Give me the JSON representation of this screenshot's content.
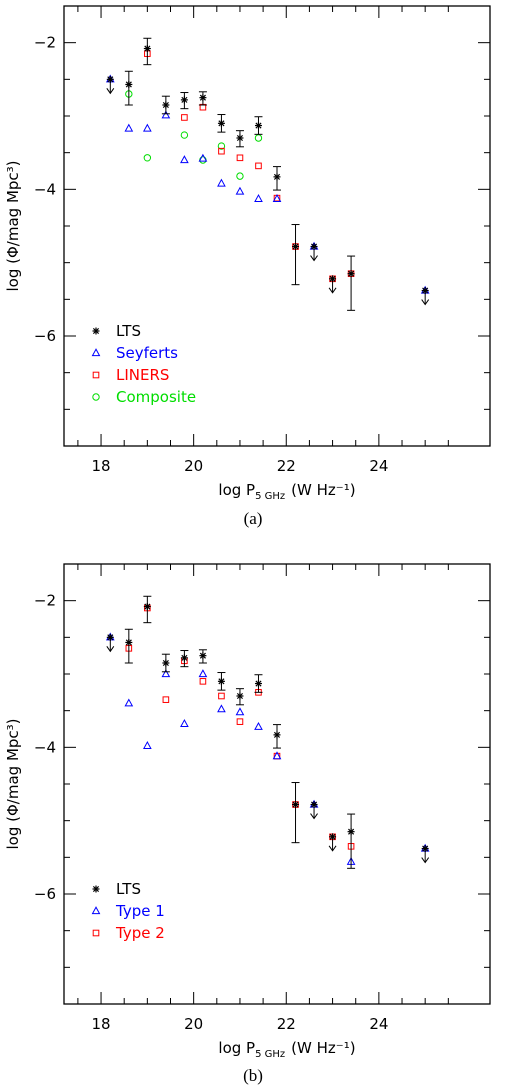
{
  "chart_data": [
    {
      "type": "scatter",
      "panel_label": "(a)",
      "xlabel": "log P5GHz (W Hz⁻¹)",
      "xlabel_parts": {
        "pre": "log P",
        "sub": "5 GHz",
        "post": "(W Hz⁻¹)"
      },
      "ylabel": "log (Φ/mag Mpc³)",
      "xlim": [
        17.2,
        26.4
      ],
      "ylim": [
        -7.5,
        -1.5
      ],
      "xticks": [
        18,
        20,
        22,
        24
      ],
      "yticks": [
        -2,
        -4,
        -6
      ],
      "grid": false,
      "legend_position": "bottom-left",
      "series": [
        {
          "name": "LTS",
          "marker": "asterisk",
          "color": "#000000",
          "x": [
            18.2,
            18.6,
            19.0,
            19.4,
            19.8,
            20.2,
            20.6,
            21.0,
            21.4,
            21.8,
            22.2,
            22.6,
            23.0,
            23.4,
            25.0
          ],
          "y": [
            -2.5,
            -2.57,
            -2.08,
            -2.85,
            -2.78,
            -2.75,
            -3.1,
            -3.3,
            -3.13,
            -3.83,
            -4.78,
            -4.78,
            -5.22,
            -5.15,
            -5.38
          ],
          "err_lo": [
            null,
            0.28,
            0.22,
            0.12,
            0.12,
            0.1,
            0.12,
            0.12,
            0.12,
            0.18,
            0.52,
            null,
            null,
            0.5,
            null
          ],
          "err_hi": [
            null,
            0.18,
            0.14,
            0.12,
            0.1,
            0.08,
            0.12,
            0.1,
            0.12,
            0.14,
            0.3,
            null,
            null,
            0.24,
            null
          ],
          "upper_limit": [
            true,
            false,
            false,
            false,
            false,
            false,
            false,
            false,
            false,
            false,
            false,
            true,
            true,
            false,
            true
          ]
        },
        {
          "name": "Seyferts",
          "marker": "triangle",
          "color": "#0000ff",
          "x": [
            18.2,
            18.6,
            19.0,
            19.4,
            19.8,
            20.2,
            20.6,
            21.0,
            21.4,
            21.8,
            22.6,
            25.0
          ],
          "y": [
            -2.5,
            -3.17,
            -3.17,
            -2.99,
            -3.6,
            -3.58,
            -3.92,
            -4.03,
            -4.13,
            -4.13,
            -4.78,
            -5.38
          ]
        },
        {
          "name": "LINERS",
          "marker": "square",
          "color": "#ff0000",
          "x": [
            19.0,
            19.8,
            20.2,
            20.6,
            21.0,
            21.4,
            21.8,
            22.2,
            23.0,
            23.4
          ],
          "y": [
            -2.15,
            -3.02,
            -2.88,
            -3.48,
            -3.57,
            -3.68,
            -4.12,
            -4.78,
            -5.22,
            -5.15
          ]
        },
        {
          "name": "Composite",
          "marker": "circle",
          "color": "#00dd00",
          "x": [
            18.6,
            19.0,
            19.8,
            20.2,
            20.6,
            21.0,
            21.4
          ],
          "y": [
            -2.7,
            -3.57,
            -3.26,
            -3.6,
            -3.41,
            -3.82,
            -3.3
          ]
        }
      ]
    },
    {
      "type": "scatter",
      "panel_label": "(b)",
      "xlabel": "log P5GHz (W Hz⁻¹)",
      "xlabel_parts": {
        "pre": "log P",
        "sub": "5 GHz",
        "post": "(W Hz⁻¹)"
      },
      "ylabel": "log (Φ/mag Mpc³)",
      "xlim": [
        17.2,
        26.4
      ],
      "ylim": [
        -7.5,
        -1.5
      ],
      "xticks": [
        18,
        20,
        22,
        24
      ],
      "yticks": [
        -2,
        -4,
        -6
      ],
      "grid": false,
      "legend_position": "bottom-left",
      "series": [
        {
          "name": "LTS",
          "marker": "asterisk",
          "color": "#000000",
          "x": [
            18.2,
            18.6,
            19.0,
            19.4,
            19.8,
            20.2,
            20.6,
            21.0,
            21.4,
            21.8,
            22.2,
            22.6,
            23.0,
            23.4,
            25.0
          ],
          "y": [
            -2.5,
            -2.57,
            -2.08,
            -2.85,
            -2.78,
            -2.75,
            -3.1,
            -3.3,
            -3.13,
            -3.83,
            -4.78,
            -4.78,
            -5.22,
            -5.15,
            -5.38
          ],
          "err_lo": [
            null,
            0.28,
            0.22,
            0.12,
            0.12,
            0.1,
            0.12,
            0.12,
            0.12,
            0.18,
            0.52,
            null,
            null,
            0.5,
            null
          ],
          "err_hi": [
            null,
            0.18,
            0.14,
            0.12,
            0.1,
            0.08,
            0.12,
            0.1,
            0.12,
            0.14,
            0.3,
            null,
            null,
            0.24,
            null
          ],
          "upper_limit": [
            true,
            false,
            false,
            false,
            false,
            false,
            false,
            false,
            false,
            false,
            false,
            true,
            true,
            false,
            true
          ]
        },
        {
          "name": "Type 1",
          "marker": "triangle",
          "color": "#0000ff",
          "x": [
            18.2,
            18.6,
            19.0,
            19.4,
            19.8,
            20.2,
            20.6,
            21.0,
            21.4,
            21.8,
            22.6,
            23.4,
            25.0
          ],
          "y": [
            -2.5,
            -3.4,
            -3.98,
            -3.0,
            -3.68,
            -3.0,
            -3.48,
            -3.52,
            -3.72,
            -4.12,
            -4.78,
            -5.56,
            -5.38
          ]
        },
        {
          "name": "Type 2",
          "marker": "square",
          "color": "#ff0000",
          "x": [
            18.6,
            19.0,
            19.4,
            19.8,
            20.2,
            20.6,
            21.0,
            21.4,
            21.8,
            22.2,
            23.0,
            23.4
          ],
          "y": [
            -2.65,
            -2.1,
            -3.35,
            -2.82,
            -3.1,
            -3.3,
            -3.65,
            -3.25,
            -4.12,
            -4.78,
            -5.22,
            -5.35
          ]
        }
      ]
    }
  ]
}
